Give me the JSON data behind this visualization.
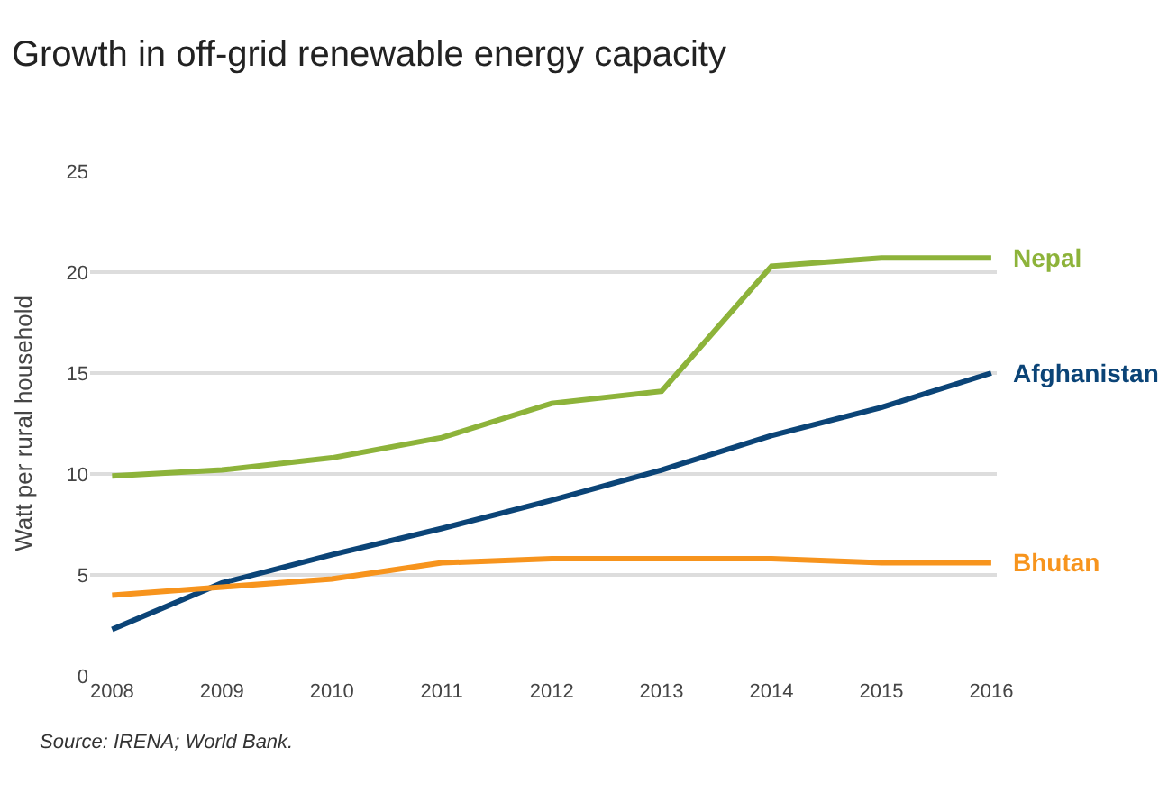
{
  "chart_data": {
    "type": "line",
    "title": "Growth in off-grid renewable energy capacity",
    "ylabel": "Watt per rural household",
    "categories": [
      "2008",
      "2009",
      "2010",
      "2011",
      "2012",
      "2013",
      "2014",
      "2015",
      "2016"
    ],
    "series": [
      {
        "name": "Nepal",
        "color": "#8db33a",
        "values": [
          9.9,
          10.2,
          10.8,
          11.8,
          13.5,
          14.1,
          20.3,
          20.7,
          20.7
        ]
      },
      {
        "name": "Afghanistan",
        "color": "#0b4477",
        "values": [
          2.3,
          4.6,
          6.0,
          7.3,
          8.7,
          10.2,
          11.9,
          13.3,
          15.0
        ]
      },
      {
        "name": "Bhutan",
        "color": "#f7941d",
        "values": [
          4.0,
          4.4,
          4.8,
          5.6,
          5.8,
          5.8,
          5.8,
          5.6,
          5.6
        ]
      }
    ],
    "ylim": [
      0,
      25
    ],
    "yticks": [
      0,
      5,
      10,
      15,
      20,
      25
    ],
    "grid": "y",
    "legend": false,
    "marker": "none",
    "line_style": "solid",
    "annotations": [
      "Source: IRENA; World Bank."
    ]
  }
}
